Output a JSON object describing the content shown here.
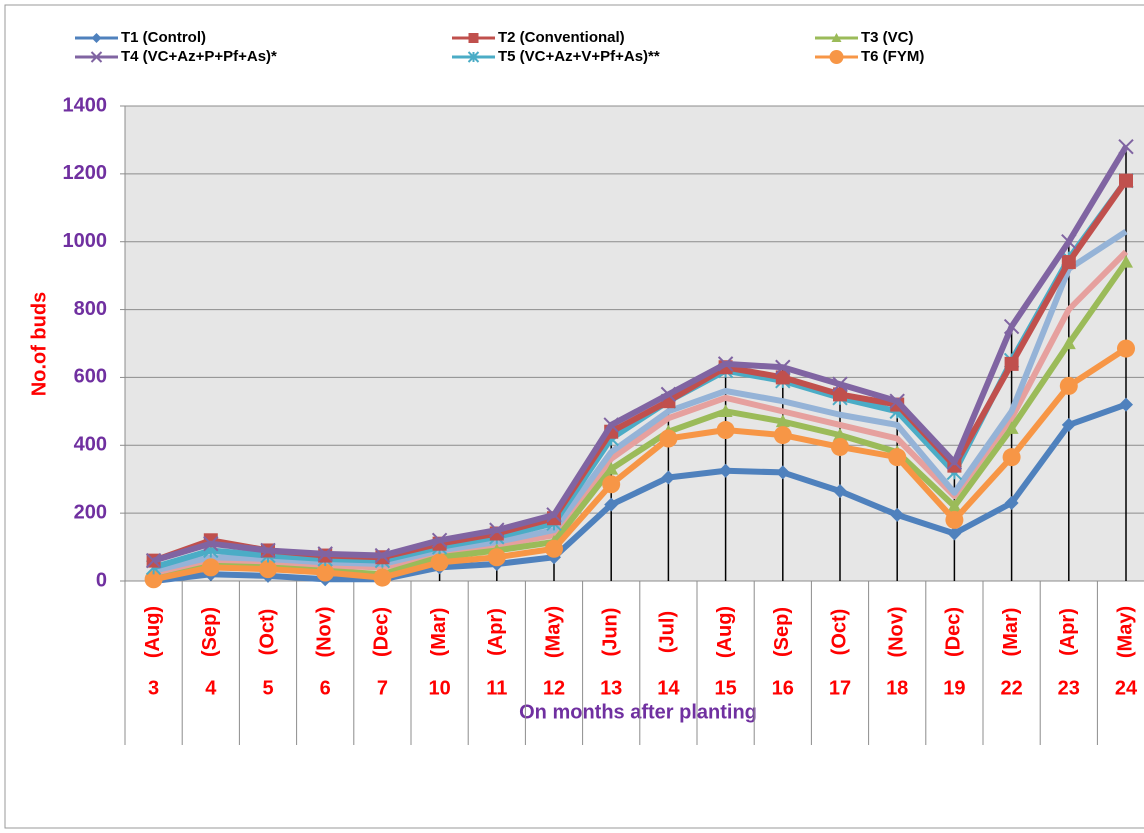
{
  "chart_data": {
    "type": "line",
    "title": null,
    "y_label": "No.of buds",
    "x_label": "On months after planting",
    "categories": [
      "3",
      "4",
      "5",
      "6",
      "7",
      "10",
      "11",
      "12",
      "13",
      "14",
      "15",
      "16",
      "17",
      "18",
      "19",
      "22",
      "23",
      "24"
    ],
    "months": [
      "(Aug)",
      "(Sep)",
      "(Oct)",
      "(Nov)",
      "(Dec)",
      "(Mar)",
      "(Apr)",
      "(May)",
      "(Jun)",
      "(Jul)",
      "(Aug)",
      "(Sep)",
      "(Oct)",
      "(Nov)",
      "(Dec)",
      "(Mar)",
      "(Apr)",
      "(May)"
    ],
    "ylim": [
      0,
      1400
    ],
    "yticks": [
      0,
      200,
      400,
      600,
      800,
      1000,
      1200,
      1400
    ],
    "grid": true,
    "series": [
      {
        "name": "T1 (Control)",
        "color": "#4f81bd",
        "marker": "diamond",
        "values": [
          0,
          20,
          15,
          5,
          5,
          40,
          50,
          70,
          225,
          305,
          325,
          320,
          265,
          195,
          140,
          230,
          460,
          520
        ]
      },
      {
        "name": "T2 (Conventional)",
        "color": "#c0504d",
        "marker": "square",
        "values": [
          60,
          120,
          90,
          75,
          70,
          110,
          140,
          185,
          440,
          530,
          630,
          600,
          550,
          520,
          340,
          640,
          940,
          1180
        ]
      },
      {
        "name": "T3 (VC)",
        "color": "#9bbb59",
        "marker": "triangle",
        "values": [
          5,
          45,
          40,
          30,
          20,
          70,
          90,
          115,
          330,
          440,
          500,
          470,
          430,
          380,
          220,
          450,
          700,
          940
        ]
      },
      {
        "name": "T4 (VC+Az+P+Pf+As)*",
        "color": "#8064a2",
        "marker": "x",
        "values": [
          60,
          110,
          90,
          80,
          75,
          120,
          150,
          195,
          460,
          550,
          640,
          630,
          580,
          530,
          350,
          750,
          1000,
          1280
        ]
      },
      {
        "name": "T5 (VC+Az+V+Pf+As)**",
        "color": "#4bacc6",
        "marker": "star",
        "values": [
          40,
          90,
          75,
          65,
          60,
          100,
          130,
          170,
          420,
          530,
          620,
          590,
          540,
          500,
          320,
          650,
          950,
          1180
        ]
      },
      {
        "name": "T6 (FYM)",
        "color": "#f79646",
        "marker": "circle",
        "values": [
          5,
          40,
          35,
          25,
          10,
          55,
          70,
          95,
          285,
          420,
          445,
          430,
          395,
          365,
          180,
          365,
          575,
          685
        ]
      },
      {
        "color": "#e6a09e",
        "marker": "none",
        "values": [
          20,
          60,
          55,
          45,
          40,
          80,
          105,
          135,
          360,
          480,
          540,
          500,
          460,
          420,
          250,
          480,
          800,
          970
        ]
      },
      {
        "color": "#95b3d7",
        "marker": "none",
        "values": [
          30,
          70,
          65,
          55,
          50,
          90,
          115,
          150,
          380,
          500,
          560,
          530,
          490,
          460,
          260,
          500,
          920,
          1030
        ]
      }
    ]
  }
}
